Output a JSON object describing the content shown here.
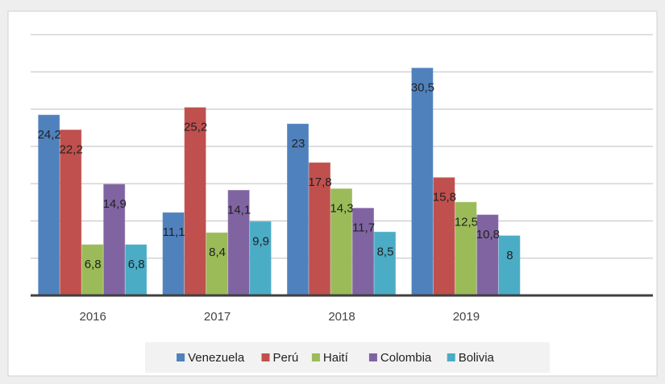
{
  "chart_data": {
    "type": "bar",
    "categories": [
      "2016",
      "2017",
      "2018",
      "2019",
      null
    ],
    "series": [
      {
        "name": "Venezuela",
        "color": "#4f81bd",
        "values": [
          24.2,
          11.1,
          23,
          30.5,
          null
        ],
        "value_labels": [
          "24,2",
          "11,1",
          "23",
          "30,5",
          null
        ]
      },
      {
        "name": "Perú",
        "color": "#c0504d",
        "values": [
          22.2,
          25.2,
          17.8,
          15.8,
          null
        ],
        "value_labels": [
          "22,2",
          "25,2",
          "17,8",
          "15,8",
          null
        ]
      },
      {
        "name": "Haití",
        "color": "#9bbb59",
        "values": [
          6.8,
          8.4,
          14.3,
          12.5,
          null
        ],
        "value_labels": [
          "6,8",
          "8,4",
          "14,3",
          "12,5",
          null
        ]
      },
      {
        "name": "Colombia",
        "color": "#8064a2",
        "values": [
          14.9,
          14.1,
          11.7,
          10.8,
          null
        ],
        "value_labels": [
          "14,9",
          "14,1",
          "11,7",
          "10,8",
          null
        ]
      },
      {
        "name": "Bolivia",
        "color": "#4bacc6",
        "values": [
          6.8,
          9.9,
          8.5,
          8,
          null
        ],
        "value_labels": [
          "6,8",
          "9,9",
          "8,5",
          "8",
          null
        ]
      }
    ],
    "ylim": [
      0,
      35
    ],
    "yticks": [
      0,
      5,
      10,
      15,
      20,
      25,
      30,
      35
    ],
    "grid": true,
    "legend": "bottom"
  }
}
